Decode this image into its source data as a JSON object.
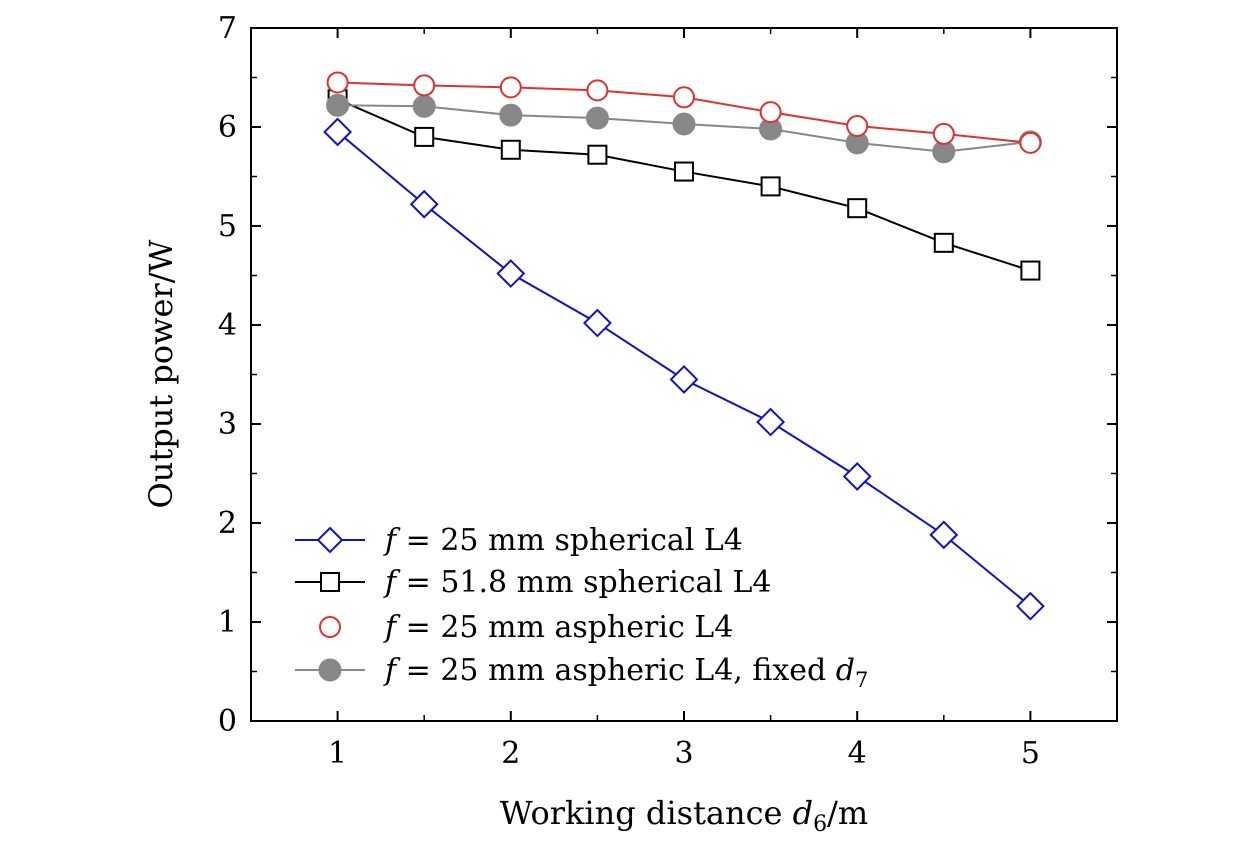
{
  "chart_data": {
    "type": "line",
    "title": "",
    "xlabel": "Working distance d6/m",
    "ylabel": "Output power/W",
    "xlim": [
      0.5,
      5.5
    ],
    "ylim": [
      0,
      7
    ],
    "xticks": [
      1,
      2,
      3,
      4,
      5
    ],
    "yticks": [
      0,
      1,
      2,
      3,
      4,
      5,
      6,
      7
    ],
    "grid": false,
    "legend_position": "bottom-left",
    "x": [
      1,
      1.5,
      2,
      2.5,
      3,
      3.5,
      4,
      4.5,
      5
    ],
    "series": [
      {
        "name": "f = 25 mm spherical L4",
        "marker": "diamond-open",
        "line": true,
        "color": "#1010c8",
        "values": [
          5.95,
          5.22,
          4.52,
          4.02,
          3.45,
          3.02,
          2.47,
          1.88,
          1.16
        ]
      },
      {
        "name": "f = 51.8 mm spherical L4",
        "marker": "square-open",
        "line": true,
        "color": "#000000",
        "values": [
          6.28,
          5.9,
          5.77,
          5.72,
          5.55,
          5.4,
          5.18,
          4.83,
          4.55
        ]
      },
      {
        "name": "f = 25 mm aspheric L4",
        "marker": "circle-open",
        "line": true,
        "color": "#e03030",
        "values": [
          6.45,
          6.42,
          6.4,
          6.37,
          6.3,
          6.15,
          6.01,
          5.93,
          5.84
        ]
      },
      {
        "name": "f = 25 mm aspheric L4, fixed d7",
        "marker": "circle-filled",
        "line": true,
        "color": "#888888",
        "values": [
          6.22,
          6.21,
          6.12,
          6.09,
          6.03,
          5.98,
          5.84,
          5.75,
          5.85
        ]
      }
    ]
  },
  "axes": {
    "xlabel_main": "Working distance ",
    "xlabel_var": "d",
    "xlabel_sub": "6",
    "xlabel_unit": "/m"
  },
  "legend": [
    {
      "var": "f",
      "text": " = 25 mm spherical L4"
    },
    {
      "var": "f",
      "text": " = 51.8 mm spherical L4"
    },
    {
      "var": "f",
      "text": " = 25 mm aspheric L4"
    },
    {
      "var": "f",
      "text": " = 25 mm aspheric L4, fixed ",
      "var2": "d",
      "sub": "7"
    }
  ]
}
